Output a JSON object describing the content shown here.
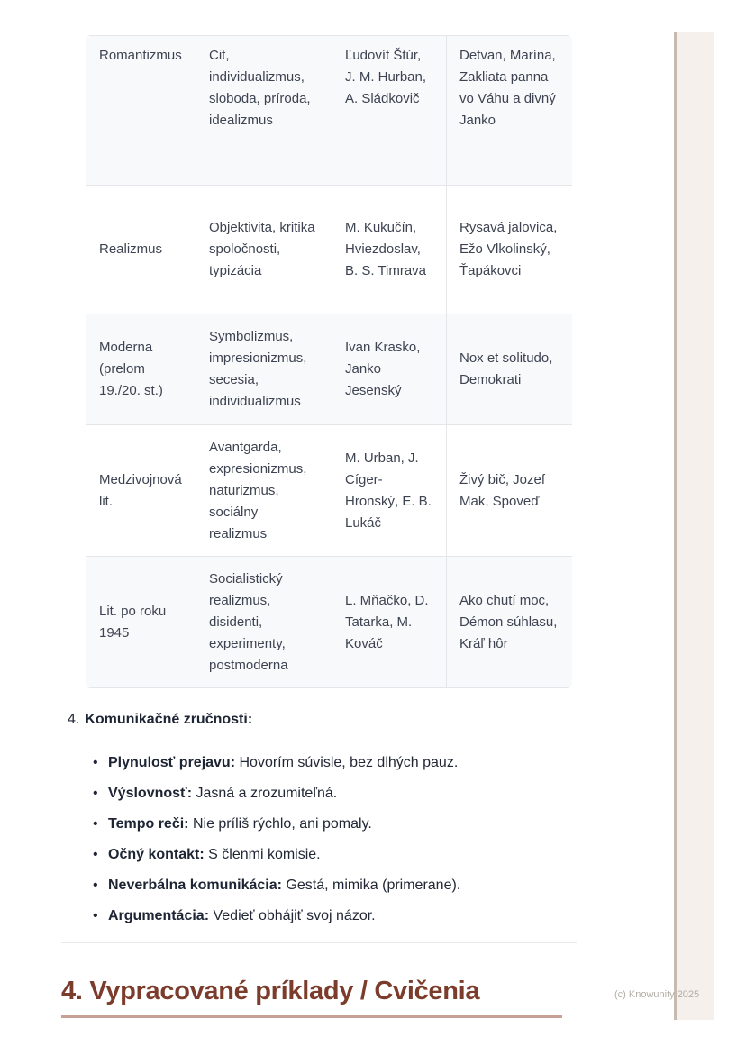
{
  "table": {
    "rows": [
      {
        "period": "Romantizmus",
        "features": "Cit, individualizmus, sloboda, príroda, idealizmus",
        "authors": "Ľudovít Štúr, J. M. Hurban, A. Sládkovič",
        "works": "Detvan, Marína, Zakliata panna vo Váhu a divný Janko"
      },
      {
        "period": "Realizmus",
        "features": "Objektivita, kritika spoločnosti, typizácia",
        "authors": "M. Kukučín, Hviezdoslav, B. S. Timrava",
        "works": "Rysavá jalovica, Ežo Vlkolinský, Ťapákovci"
      },
      {
        "period": "Moderna (prelom 19./20. st.)",
        "features": "Symbolizmus, impresionizmus, secesia, individualizmus",
        "authors": "Ivan Krasko, Janko Jesenský",
        "works": "Nox et solitudo, Demokrati"
      },
      {
        "period": "Medzivojnová lit.",
        "features": "Avantgarda, expresionizmus, naturizmus, sociálny realizmus",
        "authors": "M. Urban, J. Cíger-Hronský, E. B. Lukáč",
        "works": "Živý bič, Jozef Mak, Spoveď"
      },
      {
        "period": "Lit. po roku 1945",
        "features": "Socialistický realizmus, disidenti, experimenty, postmoderna",
        "authors": "L. Mňačko, D. Tatarka, M. Kováč",
        "works": "Ako chutí moc, Démon súhlasu, Kráľ hôr"
      }
    ]
  },
  "section": {
    "number": "4.",
    "title": "Komunikačné zručnosti:",
    "bullet_glyph": "•",
    "bullets": [
      {
        "label": "Plynulosť prejavu:",
        "text": "Hovorím súvisle, bez dlhých pauz."
      },
      {
        "label": "Výslovnosť:",
        "text": "Jasná a zrozumiteľná."
      },
      {
        "label": "Tempo reči:",
        "text": "Nie príliš rýchlo, ani pomaly."
      },
      {
        "label": "Očný kontakt:",
        "text": "S členmi komisie."
      },
      {
        "label": "Neverbálna komunikácia:",
        "text": "Gestá, mimika (primerane)."
      },
      {
        "label": "Argumentácia:",
        "text": "Vedieť obhájiť svoj názor."
      }
    ]
  },
  "heading": {
    "text": "4. Vypracované príklady / Cvičenia"
  },
  "watermark": {
    "text": "(c) Knowunity 2025"
  },
  "colors": {
    "heading": "#7b3c2b",
    "heading_underline": "#c7a195",
    "table_stripe_bg": "#f8f9fb",
    "table_border": "#e4e6ea",
    "edge_stripe_fill": "#f5f0eb",
    "edge_stripe_border": "#c9bab0",
    "watermark": "#b4ada6"
  }
}
